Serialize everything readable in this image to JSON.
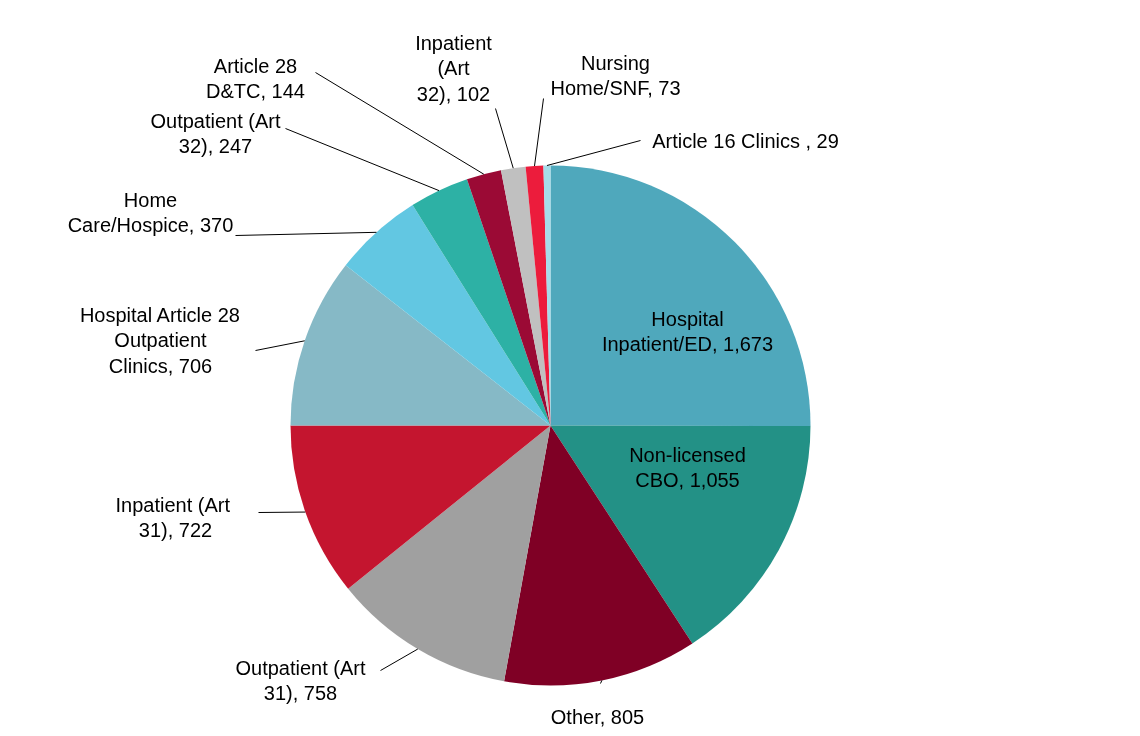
{
  "chart_data": {
    "type": "pie",
    "categories": [
      "Hospital Inpatient/ED",
      "Non-licensed CBO",
      "Other",
      "Outpatient (Art 31)",
      "Inpatient  (Art 31)",
      "Hospital Article 28 Outpatient Clinics",
      "Home Care/Hospice",
      "Outpatient (Art 32)",
      "Article 28 D&TC",
      "Inpatient (Art 32)",
      "Nursing Home/SNF",
      "Article 16 Clinics "
    ],
    "value_labels": [
      "1,673",
      "1,055",
      "805",
      "758",
      "722",
      "706",
      "370",
      "247",
      "144",
      "102",
      "73",
      "29"
    ],
    "values": [
      1673,
      1055,
      805,
      758,
      722,
      706,
      370,
      247,
      144,
      102,
      73,
      29
    ],
    "colors": [
      "#4fa8bc",
      "#239186",
      "#7f0025",
      "#a0a0a0",
      "#c4152f",
      "#86b9c6",
      "#62c7e2",
      "#2db1a5",
      "#9b0a35",
      "#c0c0c0",
      "#ec1c3c",
      "#a6dce9"
    ]
  }
}
